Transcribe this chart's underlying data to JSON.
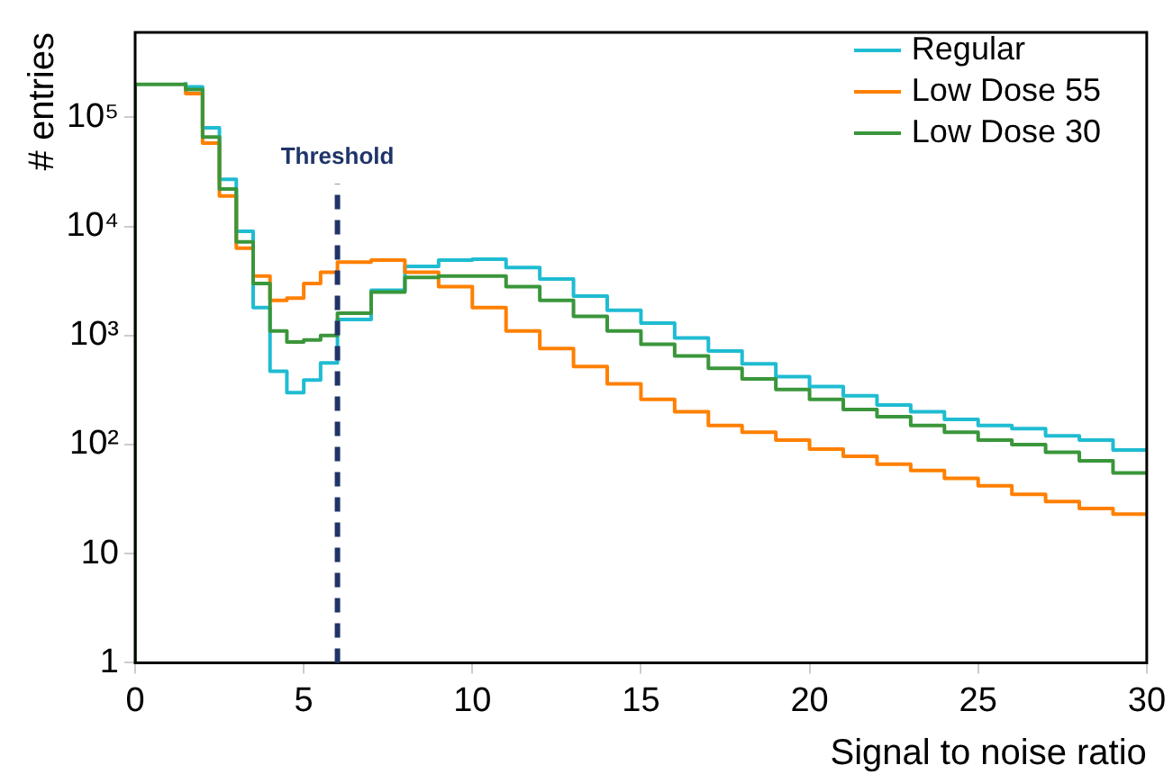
{
  "chart_data": {
    "type": "step",
    "xlabel": "Signal to noise ratio",
    "ylabel": "# entries",
    "log": "y",
    "grid": false,
    "legend": "top right",
    "marker": "none",
    "line_style": "solid",
    "xlim": [
      0,
      30
    ],
    "xticks": [
      0,
      5,
      10,
      15,
      20,
      25,
      30
    ],
    "ylim": [
      1,
      600000
    ],
    "yticks": [
      1,
      10,
      {
        "value": 100,
        "label": "10²"
      },
      {
        "value": 1000,
        "label": "10³"
      },
      {
        "value": 10000,
        "label": "10⁴"
      },
      {
        "value": 100000,
        "label": "10⁵"
      }
    ],
    "x": [
      0,
      1.5,
      2,
      2.5,
      3,
      3.5,
      4,
      4.5,
      5,
      5.5,
      6,
      7,
      8,
      9,
      10,
      11,
      12,
      13,
      14,
      15,
      16,
      17,
      18,
      19,
      20,
      21,
      22,
      23,
      24,
      25,
      26,
      27,
      28,
      29,
      30
    ],
    "series": [
      {
        "name": "Regular",
        "color": "#1fbcd2",
        "values": [
          null,
          210000,
          190000,
          80000,
          27000,
          9000,
          1800,
          470,
          300,
          390,
          560,
          1400,
          2600,
          4300,
          4900,
          5000,
          4200,
          3300,
          2300,
          1700,
          1300,
          950,
          720,
          550,
          420,
          340,
          280,
          230,
          200,
          170,
          150,
          140,
          120,
          110,
          89
        ]
      },
      {
        "name": "Low Dose 55",
        "color": "#ff8000",
        "values": [
          null,
          190000,
          165000,
          58000,
          19000,
          6300,
          3500,
          2100,
          2200,
          3000,
          3800,
          4700,
          4900,
          3800,
          2800,
          1800,
          1100,
          760,
          520,
          360,
          260,
          200,
          150,
          130,
          110,
          91,
          78,
          66,
          58,
          49,
          42,
          35,
          30,
          26,
          23
        ]
      },
      {
        "name": "Low Dose 30",
        "color": "#3a963a",
        "values": [
          1,
          200000,
          180000,
          66000,
          22000,
          7200,
          3000,
          1100,
          870,
          910,
          1000,
          1600,
          2500,
          3400,
          3500,
          3500,
          2800,
          2100,
          1500,
          1100,
          830,
          650,
          500,
          400,
          320,
          260,
          210,
          180,
          150,
          130,
          110,
          100,
          85,
          71,
          55
        ]
      }
    ],
    "ref_lines": [
      {
        "axis": "x",
        "value": 6,
        "label": "Threshold",
        "color": "#1f3468",
        "line_style": "dashed"
      }
    ]
  }
}
